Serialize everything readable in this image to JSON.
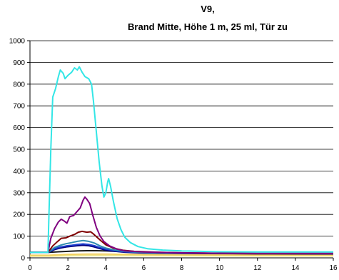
{
  "chart_data": {
    "type": "line",
    "title_line1": "V9,",
    "title_line2": "Brand Mitte, Höhe 1 m, 25 ml, Tür zu",
    "xlim": [
      0,
      16
    ],
    "ylim": [
      0,
      1000
    ],
    "x_ticks": [
      0,
      2,
      4,
      6,
      8,
      10,
      12,
      14,
      16
    ],
    "y_ticks": [
      0,
      100,
      200,
      300,
      400,
      500,
      600,
      700,
      800,
      900,
      1000
    ],
    "grid": true,
    "legend": "none",
    "series": [
      {
        "color": "#33e6e6",
        "points": [
          [
            0,
            25
          ],
          [
            0.95,
            25
          ],
          [
            1.0,
            200
          ],
          [
            1.1,
            500
          ],
          [
            1.2,
            740
          ],
          [
            1.35,
            780
          ],
          [
            1.5,
            835
          ],
          [
            1.6,
            865
          ],
          [
            1.75,
            850
          ],
          [
            1.85,
            825
          ],
          [
            2.0,
            840
          ],
          [
            2.2,
            855
          ],
          [
            2.35,
            875
          ],
          [
            2.5,
            865
          ],
          [
            2.6,
            880
          ],
          [
            2.75,
            855
          ],
          [
            2.9,
            835
          ],
          [
            3.1,
            825
          ],
          [
            3.25,
            800
          ],
          [
            3.35,
            720
          ],
          [
            3.5,
            580
          ],
          [
            3.65,
            440
          ],
          [
            3.8,
            330
          ],
          [
            3.9,
            280
          ],
          [
            4.0,
            300
          ],
          [
            4.1,
            350
          ],
          [
            4.15,
            365
          ],
          [
            4.25,
            330
          ],
          [
            4.4,
            260
          ],
          [
            4.6,
            180
          ],
          [
            4.8,
            130
          ],
          [
            5.0,
            95
          ],
          [
            5.3,
            70
          ],
          [
            5.7,
            52
          ],
          [
            6.2,
            42
          ],
          [
            7.0,
            36
          ],
          [
            8.0,
            32
          ],
          [
            9.0,
            30
          ],
          [
            10.0,
            28
          ],
          [
            12.0,
            27
          ],
          [
            14.0,
            27
          ],
          [
            16.0,
            27
          ]
        ]
      },
      {
        "color": "#800080",
        "points": [
          [
            0,
            25
          ],
          [
            0.95,
            25
          ],
          [
            1.1,
            90
          ],
          [
            1.3,
            135
          ],
          [
            1.5,
            165
          ],
          [
            1.65,
            178
          ],
          [
            1.8,
            170
          ],
          [
            1.95,
            160
          ],
          [
            2.1,
            190
          ],
          [
            2.3,
            195
          ],
          [
            2.5,
            215
          ],
          [
            2.65,
            230
          ],
          [
            2.8,
            265
          ],
          [
            2.9,
            280
          ],
          [
            3.0,
            270
          ],
          [
            3.15,
            250
          ],
          [
            3.3,
            200
          ],
          [
            3.5,
            140
          ],
          [
            3.7,
            100
          ],
          [
            3.9,
            75
          ],
          [
            4.2,
            55
          ],
          [
            4.6,
            40
          ],
          [
            5.0,
            32
          ],
          [
            6.0,
            27
          ],
          [
            8.0,
            23
          ],
          [
            10.0,
            21
          ],
          [
            12.0,
            20
          ],
          [
            16.0,
            20
          ]
        ]
      },
      {
        "color": "#800000",
        "points": [
          [
            0,
            25
          ],
          [
            0.95,
            25
          ],
          [
            1.2,
            55
          ],
          [
            1.45,
            75
          ],
          [
            1.65,
            90
          ],
          [
            1.9,
            92
          ],
          [
            2.1,
            100
          ],
          [
            2.35,
            108
          ],
          [
            2.55,
            118
          ],
          [
            2.75,
            122
          ],
          [
            3.0,
            118
          ],
          [
            3.2,
            120
          ],
          [
            3.35,
            110
          ],
          [
            3.6,
            90
          ],
          [
            3.8,
            75
          ],
          [
            4.0,
            60
          ],
          [
            4.4,
            45
          ],
          [
            4.9,
            35
          ],
          [
            5.5,
            30
          ],
          [
            7.0,
            25
          ],
          [
            9.0,
            22
          ],
          [
            12.0,
            20
          ],
          [
            16.0,
            20
          ]
        ]
      },
      {
        "color": "#2e8bb0",
        "points": [
          [
            0,
            25
          ],
          [
            0.95,
            25
          ],
          [
            1.3,
            48
          ],
          [
            1.6,
            58
          ],
          [
            1.9,
            65
          ],
          [
            2.2,
            70
          ],
          [
            2.5,
            76
          ],
          [
            2.8,
            80
          ],
          [
            3.1,
            76
          ],
          [
            3.4,
            68
          ],
          [
            3.7,
            55
          ],
          [
            4.0,
            45
          ],
          [
            4.5,
            36
          ],
          [
            5.0,
            30
          ],
          [
            6.0,
            25
          ],
          [
            8.0,
            22
          ],
          [
            12.0,
            20
          ],
          [
            16.0,
            20
          ]
        ]
      },
      {
        "color": "#1f3fcf",
        "points": [
          [
            0,
            25
          ],
          [
            0.95,
            25
          ],
          [
            1.3,
            42
          ],
          [
            1.6,
            50
          ],
          [
            1.9,
            55
          ],
          [
            2.2,
            58
          ],
          [
            2.5,
            62
          ],
          [
            2.8,
            64
          ],
          [
            3.1,
            62
          ],
          [
            3.4,
            56
          ],
          [
            3.7,
            47
          ],
          [
            4.0,
            40
          ],
          [
            4.5,
            33
          ],
          [
            5.0,
            28
          ],
          [
            6.0,
            24
          ],
          [
            8.0,
            21
          ],
          [
            12.0,
            20
          ],
          [
            16.0,
            20
          ]
        ]
      },
      {
        "color": "#000080",
        "points": [
          [
            0,
            25
          ],
          [
            0.95,
            25
          ],
          [
            1.3,
            38
          ],
          [
            1.6,
            45
          ],
          [
            1.9,
            50
          ],
          [
            2.2,
            53
          ],
          [
            2.5,
            56
          ],
          [
            2.8,
            58
          ],
          [
            3.1,
            56
          ],
          [
            3.4,
            50
          ],
          [
            3.7,
            42
          ],
          [
            4.0,
            36
          ],
          [
            4.5,
            30
          ],
          [
            5.0,
            26
          ],
          [
            6.0,
            22
          ],
          [
            8.0,
            20
          ],
          [
            12.0,
            19
          ],
          [
            16.0,
            18
          ]
        ]
      },
      {
        "color": "#1a1a1a",
        "points": [
          [
            0,
            25
          ],
          [
            0.95,
            25
          ],
          [
            1.5,
            28
          ],
          [
            2.0,
            30
          ],
          [
            2.5,
            32
          ],
          [
            3.0,
            33
          ],
          [
            3.5,
            33
          ],
          [
            4.0,
            32
          ],
          [
            4.5,
            30
          ],
          [
            5.0,
            28
          ],
          [
            6.0,
            25
          ],
          [
            8.0,
            22
          ],
          [
            10.0,
            20
          ],
          [
            12.0,
            19
          ],
          [
            16.0,
            18
          ]
        ]
      },
      {
        "color": "#f2d060",
        "points": [
          [
            0,
            12
          ],
          [
            1.0,
            12
          ],
          [
            1.5,
            14
          ],
          [
            2.0,
            16
          ],
          [
            3.0,
            17
          ],
          [
            4.0,
            17
          ],
          [
            5.0,
            16
          ],
          [
            6.0,
            15
          ],
          [
            8.0,
            14
          ],
          [
            10.0,
            13
          ],
          [
            12.0,
            13
          ],
          [
            16.0,
            13
          ]
        ]
      },
      {
        "color": "#f0e68c",
        "points": [
          [
            0,
            8
          ],
          [
            1.0,
            8
          ],
          [
            2.0,
            10
          ],
          [
            3.0,
            11
          ],
          [
            4.0,
            11
          ],
          [
            6.0,
            10
          ],
          [
            8.0,
            10
          ],
          [
            12.0,
            9
          ],
          [
            16.0,
            9
          ]
        ]
      }
    ]
  }
}
